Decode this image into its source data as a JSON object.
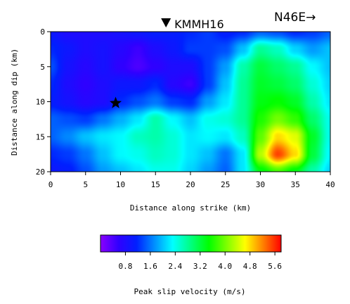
{
  "chart_data": {
    "type": "heatmap",
    "xlabel": "Distance along strike (km)",
    "ylabel": "Distance along dip (km)",
    "xlim": [
      0,
      40
    ],
    "ylim": [
      0,
      20
    ],
    "y_inverted": true,
    "xticks": [
      0,
      5,
      10,
      15,
      20,
      25,
      30,
      35,
      40
    ],
    "yticks": [
      0,
      5,
      10,
      15,
      20
    ],
    "station_label": "KMMH16",
    "station_x": 16.5,
    "direction_label": "N46E→",
    "hypocenter": {
      "x": 9.3,
      "y": 10.2
    },
    "colorbar": {
      "label": "Peak slip velocity (m/s)",
      "min": 0.0,
      "max": 5.8,
      "ticks": [
        "0.8",
        "1.6",
        "2.4",
        "3.2",
        "4.0",
        "4.8",
        "5.6"
      ],
      "tick_values": [
        0.8,
        1.6,
        2.4,
        3.2,
        4.0,
        4.8,
        5.6
      ]
    },
    "colormap": [
      "#8a00ff",
      "#3000ff",
      "#0020ff",
      "#0090ff",
      "#00ffff",
      "#00ff80",
      "#00ff00",
      "#80ff00",
      "#ffff00",
      "#ff8000",
      "#ff0000"
    ],
    "grid_x_km": [
      0,
      2.5,
      5,
      7.5,
      10,
      12.5,
      15,
      17.5,
      20,
      22.5,
      25,
      27.5,
      30,
      32.5,
      35,
      37.5,
      40
    ],
    "grid_y_km": [
      0,
      2.5,
      5,
      7.5,
      10,
      12.5,
      15,
      17.5,
      20
    ],
    "values": [
      [
        1.0,
        0.8,
        0.8,
        0.8,
        0.9,
        1.0,
        1.1,
        1.1,
        1.2,
        1.3,
        1.1,
        1.2,
        1.5,
        1.4,
        1.2,
        1.3,
        1.5
      ],
      [
        1.2,
        1.0,
        0.8,
        0.9,
        0.7,
        0.5,
        0.8,
        1.0,
        1.3,
        1.3,
        1.4,
        2.0,
        2.8,
        2.6,
        2.1,
        1.8,
        2.0
      ],
      [
        1.4,
        0.9,
        0.7,
        0.9,
        0.6,
        0.4,
        0.6,
        0.8,
        0.8,
        1.3,
        1.8,
        2.7,
        3.2,
        3.0,
        2.8,
        2.3,
        2.0
      ],
      [
        1.2,
        0.8,
        0.6,
        0.8,
        1.0,
        1.0,
        1.2,
        0.7,
        0.5,
        1.3,
        2.0,
        2.8,
        3.3,
        3.2,
        3.0,
        2.5,
        2.1
      ],
      [
        1.1,
        0.9,
        0.7,
        0.8,
        1.2,
        1.4,
        1.6,
        1.3,
        1.2,
        1.8,
        2.2,
        2.8,
        3.4,
        3.5,
        3.3,
        2.7,
        2.2
      ],
      [
        1.5,
        1.4,
        1.3,
        1.6,
        1.9,
        2.2,
        2.7,
        2.3,
        2.0,
        2.4,
        2.5,
        2.8,
        3.6,
        4.0,
        3.7,
        3.0,
        2.4
      ],
      [
        1.5,
        1.7,
        2.0,
        2.2,
        2.3,
        2.6,
        2.7,
        2.5,
        2.2,
        2.3,
        2.2,
        2.6,
        3.9,
        4.8,
        4.5,
        3.3,
        2.4
      ],
      [
        1.2,
        1.3,
        1.6,
        2.0,
        2.3,
        2.4,
        2.6,
        2.5,
        2.2,
        2.0,
        1.6,
        2.2,
        4.3,
        5.5,
        4.8,
        3.2,
        2.3
      ],
      [
        1.0,
        1.1,
        1.4,
        1.8,
        2.0,
        2.2,
        2.4,
        2.4,
        2.1,
        1.8,
        1.5,
        2.2,
        3.4,
        3.8,
        3.4,
        2.7,
        2.1
      ]
    ]
  }
}
